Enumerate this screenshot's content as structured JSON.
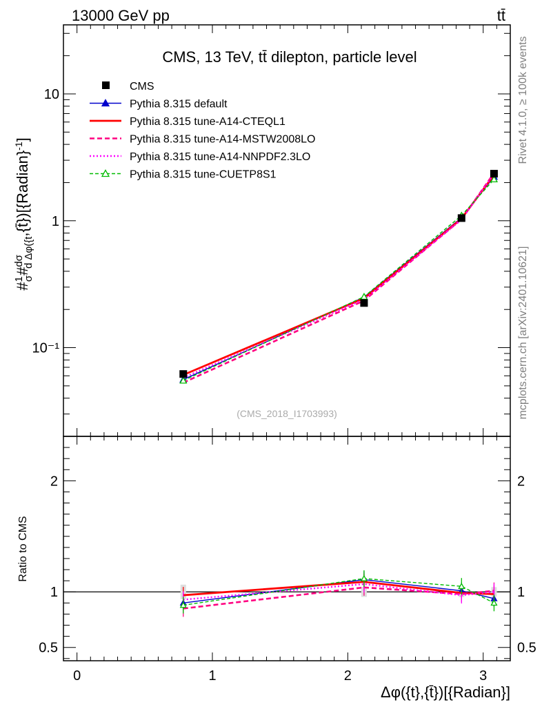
{
  "header": {
    "energy_label": "13000 GeV pp",
    "process_label": "tt̄"
  },
  "side_labels": {
    "rivet": "Rivet 4.1.0, ≥ 100k events",
    "mcplots": "mcplots.cern.ch [arXiv:2401.10621]"
  },
  "chart_data": [
    {
      "type": "line",
      "panel": "main",
      "title": "CMS, 13 TeV, tt̄ dilepton, particle level",
      "watermark": "(CMS_2018_I1703993)",
      "xlabel": "Δφ({t},{t̄})[{Radian}]",
      "ylabel": "#1/σ # dσ/dΔφ({t},{t̄})[{Radian}⁻¹]",
      "ylabel_parts": {
        "prefix": "#",
        "one": "1",
        "sigma": "σ",
        "hash": "#",
        "num": "dσ",
        "den": "d Δφ({t",
        "suffix": ",{t̄})[{Radian}",
        "exp": "-1",
        "close": "]"
      },
      "xlim": [
        -0.1,
        3.2
      ],
      "ylim": [
        0.02,
        35
      ],
      "yscale": "log",
      "x_ticks": [
        "0",
        "1",
        "2",
        "3"
      ],
      "y_ticks": [
        "10⁻¹",
        "1",
        "10"
      ],
      "x": [
        0.785,
        2.12,
        2.84,
        3.08
      ],
      "legend": {
        "placement": "top-left"
      },
      "series": [
        {
          "name": "CMS",
          "values": [
            0.062,
            0.225,
            1.05,
            2.35
          ],
          "errors": [
            0.004,
            0.01,
            0.05,
            0.1
          ],
          "color": "#000000",
          "style": "markers"
        },
        {
          "name": "Pythia 8.315 default",
          "values": [
            0.056,
            0.25,
            1.06,
            2.22
          ],
          "color": "#0000cc",
          "style": "solid",
          "marker": "triangle"
        },
        {
          "name": "Pythia 8.315 tune-A14-CTEQL1",
          "values": [
            0.061,
            0.245,
            1.04,
            2.3
          ],
          "color": "#ff0000",
          "style": "solid-thick"
        },
        {
          "name": "Pythia 8.315 tune-A14-MSTW2008LO",
          "values": [
            0.053,
            0.235,
            1.03,
            2.38
          ],
          "color": "#ff0080",
          "style": "dashed"
        },
        {
          "name": "Pythia 8.315 tune-A14-NNPDF2.3LO",
          "values": [
            0.058,
            0.24,
            1.02,
            2.35
          ],
          "color": "#ff00ff",
          "style": "dotted"
        },
        {
          "name": "Pythia 8.315 tune-CUETP8S1",
          "values": [
            0.055,
            0.252,
            1.1,
            2.12
          ],
          "color": "#00bb00",
          "style": "dashed-thin",
          "marker": "open-triangle"
        }
      ]
    },
    {
      "type": "line",
      "panel": "ratio",
      "ylabel": "Ratio to CMS",
      "ylim": [
        0.38,
        2.4
      ],
      "x_ticks": [
        "0",
        "1",
        "2",
        "3"
      ],
      "y_ticks": [
        "0.5",
        "1",
        "2"
      ],
      "reference": 1.0,
      "x": [
        0.785,
        2.12,
        2.84,
        3.08
      ],
      "series": [
        {
          "name": "CMS",
          "values": [
            1.0,
            1.0,
            1.0,
            1.0
          ],
          "errors": [
            0.065,
            0.045,
            0.048,
            0.043
          ],
          "color": "#000000"
        },
        {
          "name": "Pythia 8.315 default",
          "values": [
            0.9,
            1.11,
            1.01,
            0.94
          ],
          "color": "#0000cc"
        },
        {
          "name": "Pythia 8.315 tune-A14-CTEQL1",
          "values": [
            0.97,
            1.09,
            0.99,
            0.98
          ],
          "color": "#ff0000"
        },
        {
          "name": "Pythia 8.315 tune-A14-MSTW2008LO",
          "values": [
            0.85,
            1.04,
            0.98,
            1.01
          ],
          "color": "#ff0080"
        },
        {
          "name": "Pythia 8.315 tune-A14-NNPDF2.3LO",
          "values": [
            0.93,
            1.07,
            0.97,
            1.0
          ],
          "color": "#ff00ff"
        },
        {
          "name": "Pythia 8.315 tune-CUETP8S1",
          "values": [
            0.88,
            1.12,
            1.05,
            0.9
          ],
          "color": "#00bb00"
        }
      ]
    }
  ]
}
